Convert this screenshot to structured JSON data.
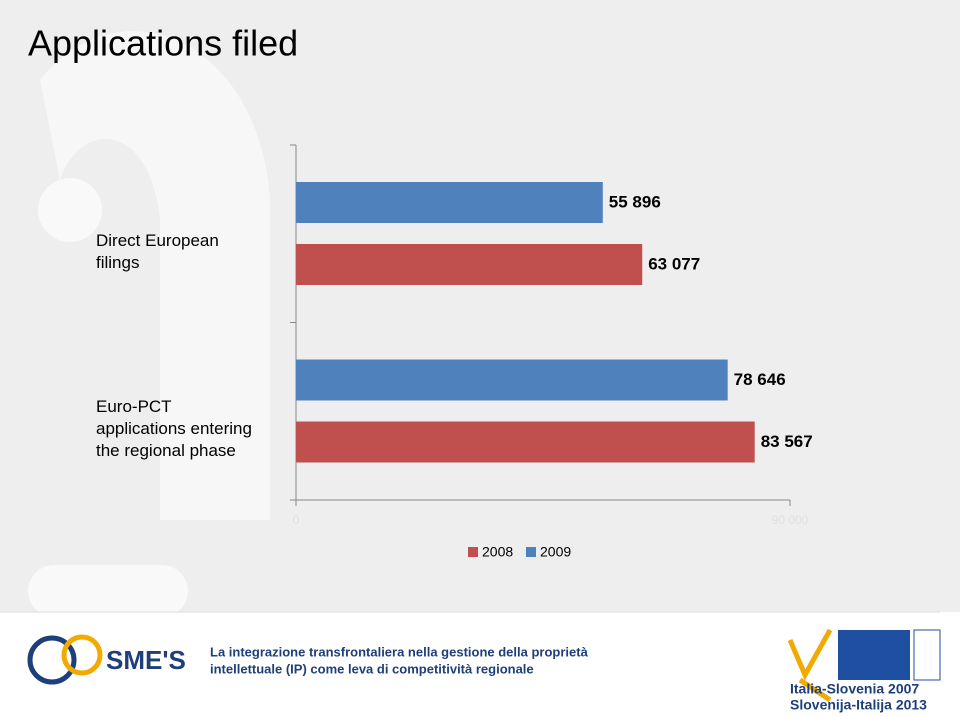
{
  "chart_data": {
    "type": "bar",
    "orientation": "horizontal",
    "title": "Applications filed",
    "categories": [
      "Direct European filings",
      "Euro-PCT applications entering the regional phase"
    ],
    "series": [
      {
        "name": "2008",
        "color": "#c0504d",
        "values": [
          63077,
          83567
        ],
        "value_labels": [
          "63 077",
          "83 567"
        ]
      },
      {
        "name": "2009",
        "color": "#4f81bd",
        "values": [
          55896,
          78646
        ],
        "value_labels": [
          "55 896",
          "78 646"
        ]
      }
    ],
    "xlim": [
      0,
      90000
    ],
    "xticks": [
      0,
      {
        "value": 90000,
        "label": "90 000"
      }
    ],
    "legend": "bottom"
  },
  "footer": {
    "lines": [
      "La integrazione transfrontaliera nella gestione della proprietà",
      "intellettuale (IP) come leva di competitività regionale"
    ],
    "logo_left": "SME'S",
    "logo_right": [
      "Italia-Slovenia 2007",
      "Slovenija-Italija 2013"
    ]
  }
}
